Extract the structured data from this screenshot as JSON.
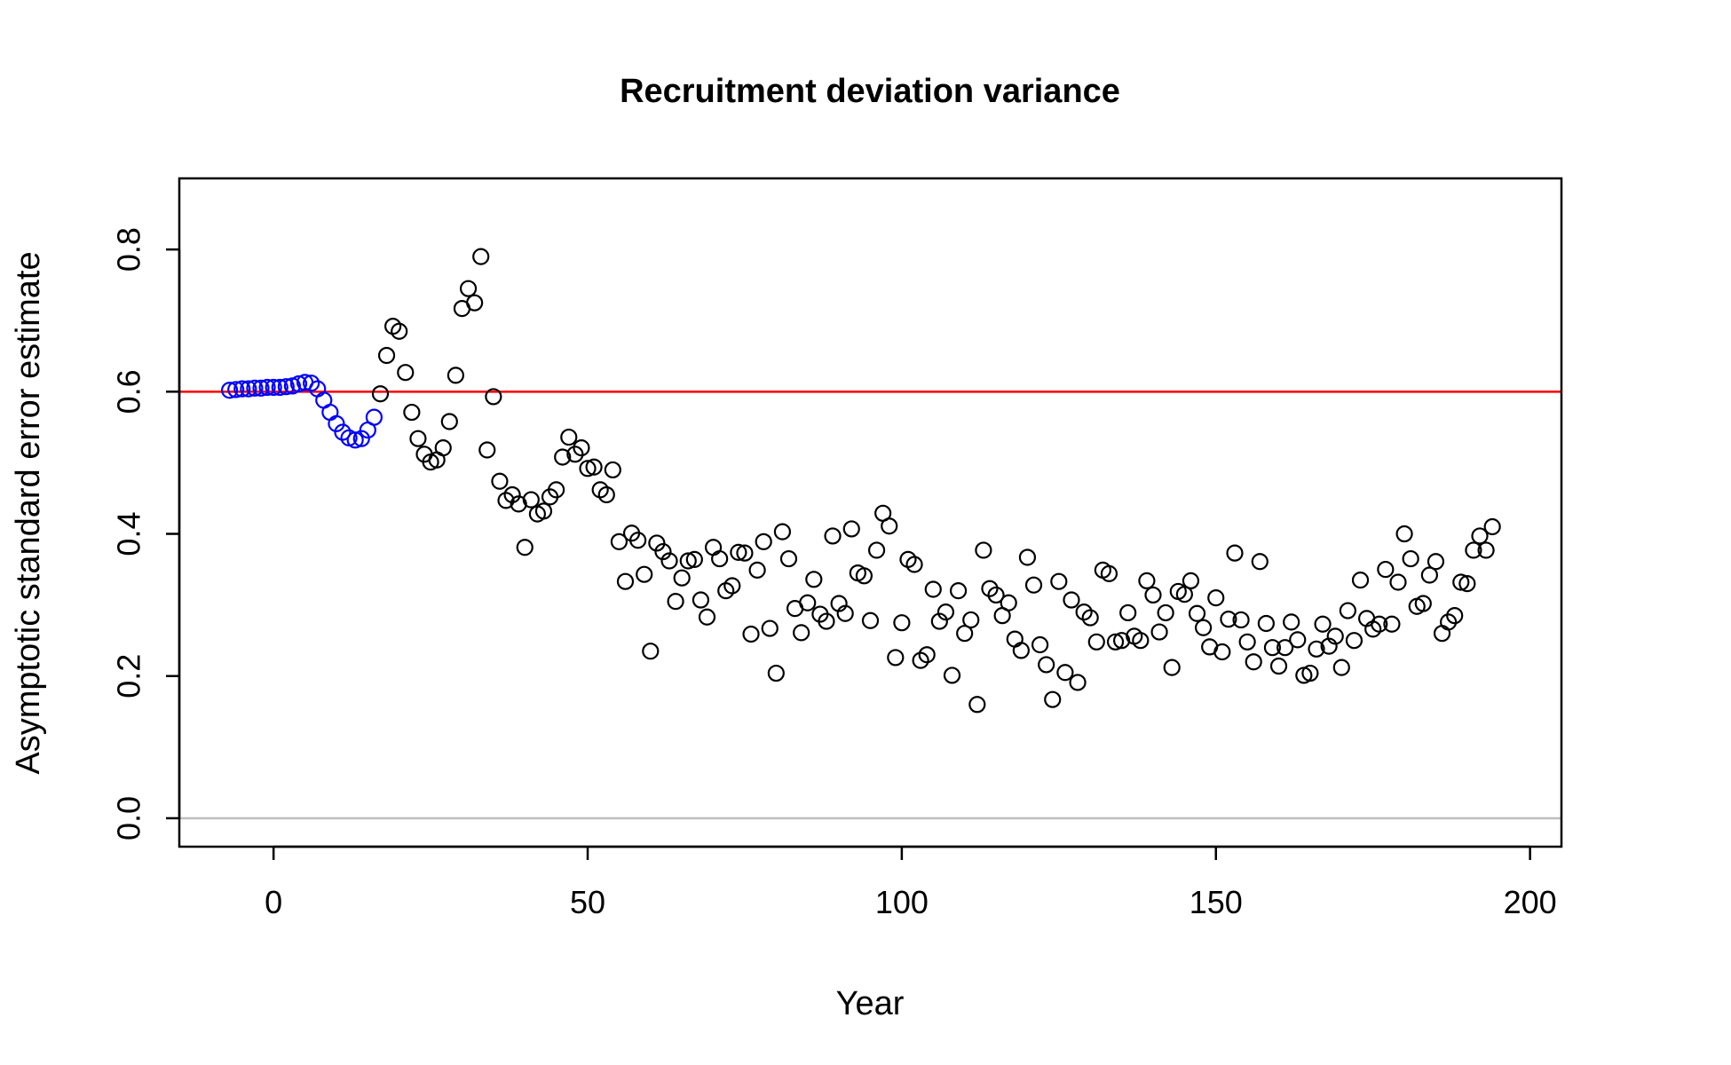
{
  "chart_data": {
    "type": "scatter",
    "title": "Recruitment deviation variance",
    "xlabel": "Year",
    "ylabel": "Asymptotic standard error estimate",
    "xlim": [
      -15,
      205
    ],
    "ylim": [
      -0.04,
      0.9
    ],
    "xticks": [
      0,
      50,
      100,
      150,
      200
    ],
    "xtick_labels": [
      "0",
      "50",
      "100",
      "150",
      "200"
    ],
    "yticks": [
      0.0,
      0.2,
      0.4,
      0.6,
      0.8
    ],
    "ytick_labels": [
      "0.0",
      "0.2",
      "0.4",
      "0.6",
      "0.8"
    ],
    "grid": false,
    "legend": "none",
    "reference_lines": [
      {
        "y": 0.6,
        "color": "#ff0000"
      },
      {
        "y": 0.0,
        "color": "#bebebe"
      }
    ],
    "series": [
      {
        "color": "#0000ff",
        "marker": "open-circle",
        "points": [
          [
            -7,
            0.602
          ],
          [
            -6,
            0.603
          ],
          [
            -5,
            0.604
          ],
          [
            -4,
            0.604
          ],
          [
            -3,
            0.605
          ],
          [
            -2,
            0.605
          ],
          [
            -1,
            0.606
          ],
          [
            0,
            0.606
          ],
          [
            1,
            0.606
          ],
          [
            2,
            0.607
          ],
          [
            3,
            0.608
          ],
          [
            4,
            0.611
          ],
          [
            5,
            0.613
          ],
          [
            6,
            0.612
          ],
          [
            7,
            0.604
          ],
          [
            8,
            0.588
          ],
          [
            9,
            0.571
          ],
          [
            10,
            0.555
          ],
          [
            11,
            0.543
          ],
          [
            12,
            0.535
          ],
          [
            13,
            0.532
          ],
          [
            14,
            0.534
          ],
          [
            15,
            0.546
          ],
          [
            16,
            0.564
          ]
        ]
      },
      {
        "color": "#000000",
        "marker": "open-circle",
        "points": [
          [
            17,
            0.597
          ],
          [
            18,
            0.651
          ],
          [
            19,
            0.692
          ],
          [
            20,
            0.685
          ],
          [
            21,
            0.627
          ],
          [
            22,
            0.571
          ],
          [
            23,
            0.534
          ],
          [
            24,
            0.512
          ],
          [
            25,
            0.501
          ],
          [
            26,
            0.504
          ],
          [
            27,
            0.521
          ],
          [
            28,
            0.558
          ],
          [
            29,
            0.623
          ],
          [
            30,
            0.717
          ],
          [
            31,
            0.745
          ],
          [
            32,
            0.725
          ],
          [
            33,
            0.79
          ],
          [
            34,
            0.518
          ],
          [
            35,
            0.593
          ],
          [
            36,
            0.474
          ],
          [
            37,
            0.447
          ],
          [
            38,
            0.455
          ],
          [
            39,
            0.442
          ],
          [
            40,
            0.381
          ],
          [
            41,
            0.448
          ],
          [
            42,
            0.428
          ],
          [
            43,
            0.432
          ],
          [
            44,
            0.452
          ],
          [
            45,
            0.462
          ],
          [
            46,
            0.508
          ],
          [
            47,
            0.536
          ],
          [
            48,
            0.512
          ],
          [
            49,
            0.521
          ],
          [
            50,
            0.492
          ],
          [
            51,
            0.494
          ],
          [
            52,
            0.462
          ],
          [
            53,
            0.455
          ],
          [
            54,
            0.49
          ],
          [
            55,
            0.389
          ],
          [
            56,
            0.333
          ],
          [
            57,
            0.401
          ],
          [
            58,
            0.391
          ],
          [
            59,
            0.343
          ],
          [
            60,
            0.235
          ],
          [
            61,
            0.387
          ],
          [
            62,
            0.375
          ],
          [
            63,
            0.362
          ],
          [
            64,
            0.305
          ],
          [
            65,
            0.338
          ],
          [
            66,
            0.362
          ],
          [
            67,
            0.364
          ],
          [
            68,
            0.307
          ],
          [
            69,
            0.283
          ],
          [
            70,
            0.381
          ],
          [
            71,
            0.365
          ],
          [
            72,
            0.32
          ],
          [
            73,
            0.327
          ],
          [
            74,
            0.374
          ],
          [
            75,
            0.373
          ],
          [
            76,
            0.259
          ],
          [
            77,
            0.349
          ],
          [
            78,
            0.389
          ],
          [
            79,
            0.267
          ],
          [
            80,
            0.204
          ],
          [
            81,
            0.403
          ],
          [
            82,
            0.365
          ],
          [
            83,
            0.295
          ],
          [
            84,
            0.261
          ],
          [
            85,
            0.303
          ],
          [
            86,
            0.336
          ],
          [
            87,
            0.287
          ],
          [
            88,
            0.277
          ],
          [
            89,
            0.397
          ],
          [
            90,
            0.302
          ],
          [
            91,
            0.288
          ],
          [
            92,
            0.407
          ],
          [
            93,
            0.345
          ],
          [
            94,
            0.341
          ],
          [
            95,
            0.278
          ],
          [
            96,
            0.377
          ],
          [
            97,
            0.429
          ],
          [
            98,
            0.411
          ],
          [
            99,
            0.226
          ],
          [
            100,
            0.275
          ],
          [
            101,
            0.364
          ],
          [
            102,
            0.357
          ],
          [
            103,
            0.222
          ],
          [
            104,
            0.23
          ],
          [
            105,
            0.322
          ],
          [
            106,
            0.277
          ],
          [
            107,
            0.29
          ],
          [
            108,
            0.201
          ],
          [
            109,
            0.32
          ],
          [
            110,
            0.26
          ],
          [
            111,
            0.279
          ],
          [
            112,
            0.16
          ],
          [
            113,
            0.377
          ],
          [
            114,
            0.323
          ],
          [
            115,
            0.314
          ],
          [
            116,
            0.285
          ],
          [
            117,
            0.303
          ],
          [
            118,
            0.252
          ],
          [
            119,
            0.236
          ],
          [
            120,
            0.367
          ],
          [
            121,
            0.328
          ],
          [
            122,
            0.244
          ],
          [
            123,
            0.216
          ],
          [
            124,
            0.167
          ],
          [
            125,
            0.333
          ],
          [
            126,
            0.205
          ],
          [
            127,
            0.307
          ],
          [
            128,
            0.191
          ],
          [
            129,
            0.29
          ],
          [
            130,
            0.282
          ],
          [
            131,
            0.248
          ],
          [
            132,
            0.349
          ],
          [
            133,
            0.344
          ],
          [
            134,
            0.248
          ],
          [
            135,
            0.25
          ],
          [
            136,
            0.289
          ],
          [
            137,
            0.256
          ],
          [
            138,
            0.25
          ],
          [
            139,
            0.334
          ],
          [
            140,
            0.314
          ],
          [
            141,
            0.262
          ],
          [
            142,
            0.289
          ],
          [
            143,
            0.212
          ],
          [
            144,
            0.319
          ],
          [
            145,
            0.315
          ],
          [
            146,
            0.334
          ],
          [
            147,
            0.288
          ],
          [
            148,
            0.268
          ],
          [
            149,
            0.241
          ],
          [
            150,
            0.31
          ],
          [
            151,
            0.234
          ],
          [
            152,
            0.28
          ],
          [
            153,
            0.373
          ],
          [
            154,
            0.279
          ],
          [
            155,
            0.248
          ],
          [
            156,
            0.22
          ],
          [
            157,
            0.361
          ],
          [
            158,
            0.274
          ],
          [
            159,
            0.24
          ],
          [
            160,
            0.214
          ],
          [
            161,
            0.24
          ],
          [
            162,
            0.276
          ],
          [
            163,
            0.251
          ],
          [
            164,
            0.201
          ],
          [
            165,
            0.204
          ],
          [
            166,
            0.238
          ],
          [
            167,
            0.273
          ],
          [
            168,
            0.242
          ],
          [
            169,
            0.256
          ],
          [
            170,
            0.212
          ],
          [
            171,
            0.292
          ],
          [
            172,
            0.25
          ],
          [
            173,
            0.335
          ],
          [
            174,
            0.281
          ],
          [
            175,
            0.266
          ],
          [
            176,
            0.273
          ],
          [
            177,
            0.35
          ],
          [
            178,
            0.273
          ],
          [
            179,
            0.332
          ],
          [
            180,
            0.4
          ],
          [
            181,
            0.365
          ],
          [
            182,
            0.298
          ],
          [
            183,
            0.302
          ],
          [
            184,
            0.342
          ],
          [
            185,
            0.361
          ],
          [
            186,
            0.26
          ],
          [
            187,
            0.276
          ],
          [
            188,
            0.285
          ],
          [
            189,
            0.332
          ],
          [
            190,
            0.33
          ],
          [
            191,
            0.377
          ],
          [
            192,
            0.397
          ],
          [
            193,
            0.377
          ],
          [
            194,
            0.41
          ]
        ]
      }
    ]
  }
}
